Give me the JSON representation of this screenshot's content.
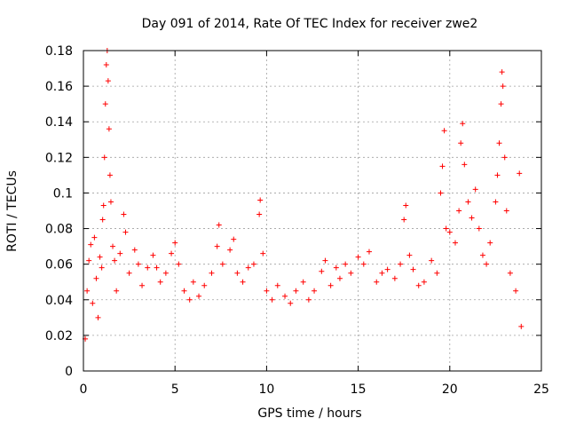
{
  "chart_data": {
    "type": "scatter",
    "title": "Day 091 of 2014, Rate Of TEC Index for receiver zwe2",
    "xlabel": "GPS time / hours",
    "ylabel": "ROTI / TECUs",
    "xlim": [
      0,
      25
    ],
    "ylim": [
      0,
      0.18
    ],
    "xticks": [
      0,
      5,
      10,
      15,
      20,
      25
    ],
    "xtick_labels": [
      "0",
      "5",
      "10",
      "15",
      "20",
      "25"
    ],
    "yticks": [
      0,
      0.02,
      0.04,
      0.06,
      0.08,
      0.1,
      0.12,
      0.14,
      0.16,
      0.18
    ],
    "ytick_labels": [
      "0",
      "0.02",
      "0.04",
      "0.06",
      "0.08",
      "0.1",
      "0.12",
      "0.14",
      "0.16",
      "0.18"
    ],
    "grid": true,
    "marker": "+",
    "series": [
      {
        "name": "ROTI",
        "color": "#ff0000",
        "points": [
          [
            0.1,
            0.018
          ],
          [
            0.2,
            0.045
          ],
          [
            0.3,
            0.062
          ],
          [
            0.4,
            0.071
          ],
          [
            0.5,
            0.038
          ],
          [
            0.6,
            0.075
          ],
          [
            0.7,
            0.052
          ],
          [
            0.8,
            0.03
          ],
          [
            0.9,
            0.064
          ],
          [
            1.0,
            0.058
          ],
          [
            1.05,
            0.085
          ],
          [
            1.1,
            0.093
          ],
          [
            1.15,
            0.12
          ],
          [
            1.2,
            0.15
          ],
          [
            1.25,
            0.172
          ],
          [
            1.3,
            0.18
          ],
          [
            1.35,
            0.163
          ],
          [
            1.4,
            0.136
          ],
          [
            1.45,
            0.11
          ],
          [
            1.5,
            0.095
          ],
          [
            1.6,
            0.07
          ],
          [
            1.7,
            0.062
          ],
          [
            1.8,
            0.045
          ],
          [
            2.0,
            0.066
          ],
          [
            2.2,
            0.088
          ],
          [
            2.3,
            0.078
          ],
          [
            2.5,
            0.055
          ],
          [
            2.8,
            0.068
          ],
          [
            3.0,
            0.06
          ],
          [
            3.2,
            0.048
          ],
          [
            3.5,
            0.058
          ],
          [
            3.8,
            0.065
          ],
          [
            4.0,
            0.058
          ],
          [
            4.2,
            0.05
          ],
          [
            4.5,
            0.055
          ],
          [
            4.8,
            0.066
          ],
          [
            5.0,
            0.072
          ],
          [
            5.2,
            0.06
          ],
          [
            5.5,
            0.045
          ],
          [
            5.8,
            0.04
          ],
          [
            6.0,
            0.05
          ],
          [
            6.3,
            0.042
          ],
          [
            6.6,
            0.048
          ],
          [
            7.0,
            0.055
          ],
          [
            7.3,
            0.07
          ],
          [
            7.4,
            0.082
          ],
          [
            7.6,
            0.06
          ],
          [
            8.0,
            0.068
          ],
          [
            8.2,
            0.074
          ],
          [
            8.4,
            0.055
          ],
          [
            8.7,
            0.05
          ],
          [
            9.0,
            0.058
          ],
          [
            9.3,
            0.06
          ],
          [
            9.6,
            0.088
          ],
          [
            9.65,
            0.096
          ],
          [
            9.8,
            0.066
          ],
          [
            10.0,
            0.045
          ],
          [
            10.3,
            0.04
          ],
          [
            10.6,
            0.048
          ],
          [
            11.0,
            0.042
          ],
          [
            11.3,
            0.038
          ],
          [
            11.6,
            0.045
          ],
          [
            12.0,
            0.05
          ],
          [
            12.3,
            0.04
          ],
          [
            12.6,
            0.045
          ],
          [
            13.0,
            0.056
          ],
          [
            13.2,
            0.062
          ],
          [
            13.5,
            0.048
          ],
          [
            13.8,
            0.058
          ],
          [
            14.0,
            0.052
          ],
          [
            14.3,
            0.06
          ],
          [
            14.6,
            0.055
          ],
          [
            15.0,
            0.064
          ],
          [
            15.3,
            0.06
          ],
          [
            15.6,
            0.067
          ],
          [
            16.0,
            0.05
          ],
          [
            16.3,
            0.055
          ],
          [
            16.6,
            0.057
          ],
          [
            17.0,
            0.052
          ],
          [
            17.3,
            0.06
          ],
          [
            17.5,
            0.085
          ],
          [
            17.6,
            0.093
          ],
          [
            17.8,
            0.065
          ],
          [
            18.0,
            0.057
          ],
          [
            18.3,
            0.048
          ],
          [
            18.6,
            0.05
          ],
          [
            19.0,
            0.062
          ],
          [
            19.3,
            0.055
          ],
          [
            19.5,
            0.1
          ],
          [
            19.6,
            0.115
          ],
          [
            19.7,
            0.135
          ],
          [
            19.8,
            0.08
          ],
          [
            20.0,
            0.078
          ],
          [
            20.3,
            0.072
          ],
          [
            20.5,
            0.09
          ],
          [
            20.6,
            0.128
          ],
          [
            20.7,
            0.139
          ],
          [
            20.8,
            0.116
          ],
          [
            21.0,
            0.095
          ],
          [
            21.2,
            0.086
          ],
          [
            21.4,
            0.102
          ],
          [
            21.6,
            0.08
          ],
          [
            21.8,
            0.065
          ],
          [
            22.0,
            0.06
          ],
          [
            22.2,
            0.072
          ],
          [
            22.5,
            0.095
          ],
          [
            22.6,
            0.11
          ],
          [
            22.7,
            0.128
          ],
          [
            22.8,
            0.15
          ],
          [
            22.85,
            0.168
          ],
          [
            22.9,
            0.16
          ],
          [
            23.0,
            0.12
          ],
          [
            23.1,
            0.09
          ],
          [
            23.3,
            0.055
          ],
          [
            23.6,
            0.045
          ],
          [
            23.8,
            0.111
          ],
          [
            23.9,
            0.025
          ]
        ]
      }
    ]
  }
}
